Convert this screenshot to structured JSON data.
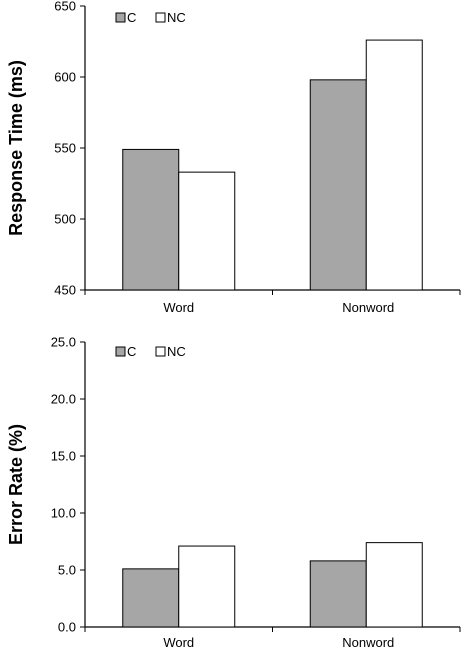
{
  "chart_data": [
    {
      "type": "bar",
      "title": "",
      "xlabel": "",
      "ylabel": "Response Time (ms)",
      "ylim": [
        450,
        650
      ],
      "yticks": [
        450,
        500,
        550,
        600,
        650
      ],
      "ytick_labels": [
        "450",
        "500",
        "550",
        "600",
        "650"
      ],
      "categories": [
        "Word",
        "Nonword"
      ],
      "series": [
        {
          "name": "C",
          "color": "#a6a6a6",
          "values": [
            549,
            598
          ]
        },
        {
          "name": "NC",
          "color": "#ffffff",
          "values": [
            533,
            626
          ]
        }
      ],
      "legend_position": "top-left",
      "grid": false
    },
    {
      "type": "bar",
      "title": "",
      "xlabel": "",
      "ylabel": "Error Rate (%)",
      "ylim": [
        0,
        25
      ],
      "yticks": [
        0,
        5,
        10,
        15,
        20,
        25
      ],
      "ytick_labels": [
        "0.0",
        "5.0",
        "10.0",
        "15.0",
        "20.0",
        "25.0"
      ],
      "categories": [
        "Word",
        "Nonword"
      ],
      "series": [
        {
          "name": "C",
          "color": "#a6a6a6",
          "values": [
            5.1,
            5.8
          ]
        },
        {
          "name": "NC",
          "color": "#ffffff",
          "values": [
            7.1,
            7.4
          ]
        }
      ],
      "legend_position": "top-left",
      "grid": false
    }
  ]
}
